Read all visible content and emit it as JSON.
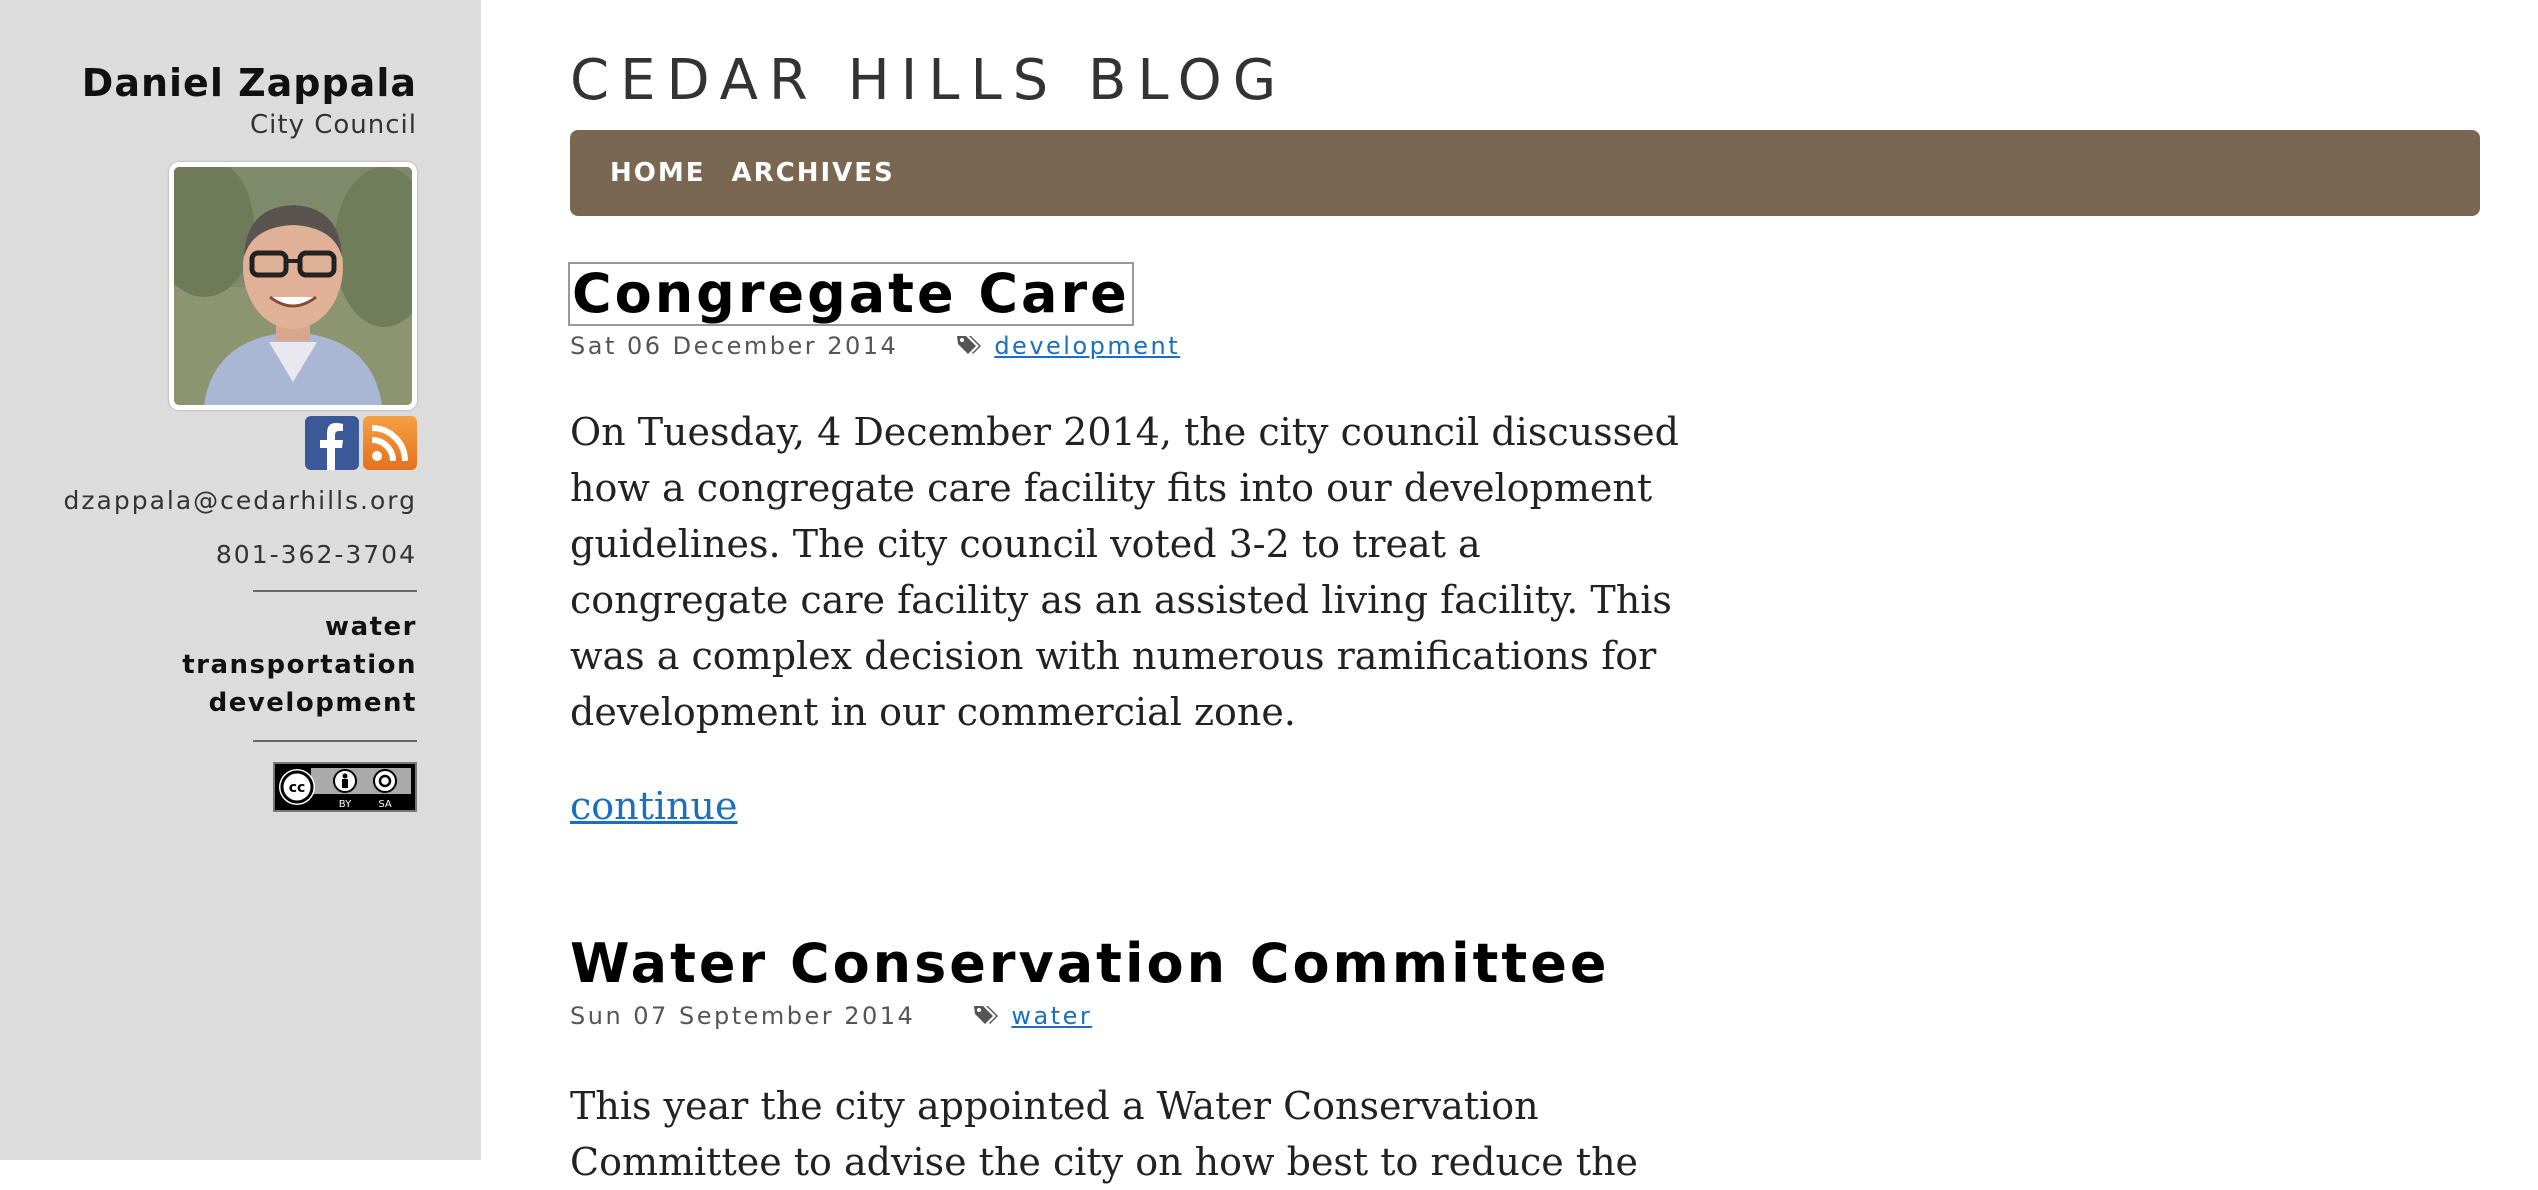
{
  "sidebar": {
    "author_name": "Daniel Zappala",
    "author_role": "City Council",
    "avatar_icon": "person-photo",
    "social": {
      "facebook_icon": "facebook-icon",
      "rss_icon": "rss-icon"
    },
    "email": "dzappala@cedarhills.org",
    "phone": "801-362-3704",
    "tags": [
      "water",
      "transportation",
      "development"
    ],
    "license": {
      "cc": "cc",
      "by": "BY",
      "sa": "SA"
    }
  },
  "header": {
    "blog_title": "CEDAR HILLS BLOG",
    "nav": [
      "HOME",
      "ARCHIVES"
    ],
    "nav_color": "#7a6752"
  },
  "posts": [
    {
      "title": "Congregate Care",
      "date": "Sat 06 December 2014",
      "tag": "development",
      "summary": "On Tuesday, 4 December 2014, the city council discussed how a congregate care facility fits into our development guidelines. The city council voted 3-2 to treat a congregate care facility as an assisted living facility. This was a complex decision with numerous ramifications for development in our commercial zone.",
      "continue": "continue"
    },
    {
      "title": "Water Conservation Committee",
      "date": "Sun 07 September 2014",
      "tag": "water",
      "summary": "This year the city appointed a Water Conservation Committee to advise the city on how best to reduce the"
    }
  ],
  "colors": {
    "link": "#1a6fbf",
    "sidebar_bg": "#dcdcdc"
  }
}
